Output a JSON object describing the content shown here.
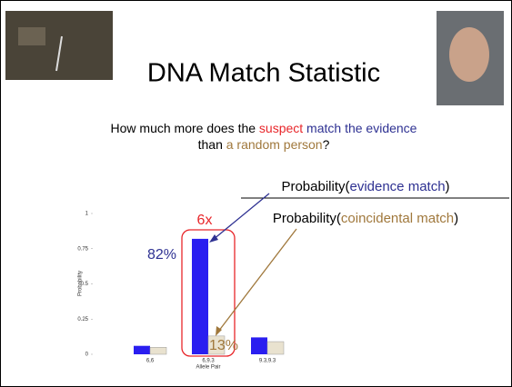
{
  "slide": {
    "title": "DNA Match Statistic",
    "subtitle_line1": [
      "How much more does the ",
      "suspect",
      " match the evidence"
    ],
    "subtitle_line2": [
      "than ",
      "a random person",
      "?"
    ],
    "numerator": [
      "Probability(",
      "evidence match",
      ")"
    ],
    "denominator": [
      "Probability(",
      "coincidental match",
      ")"
    ]
  },
  "chart_data": {
    "type": "bar",
    "x_label": "Allele Pair",
    "y_label": "Probability",
    "categories": [
      "6,6",
      "6,9.3",
      "9.3,9.3"
    ],
    "series": [
      {
        "color": "#2a1ef0",
        "values": [
          0.06,
          0.82,
          0.12
        ]
      },
      {
        "color": "#e9e2cf",
        "values": [
          0.05,
          0.13,
          0.09
        ]
      }
    ],
    "ylim": [
      0,
      1
    ],
    "yticks": [
      0,
      0.25,
      0.5,
      0.75,
      1
    ],
    "annotations": [
      "82%",
      "13%",
      "6x"
    ]
  }
}
